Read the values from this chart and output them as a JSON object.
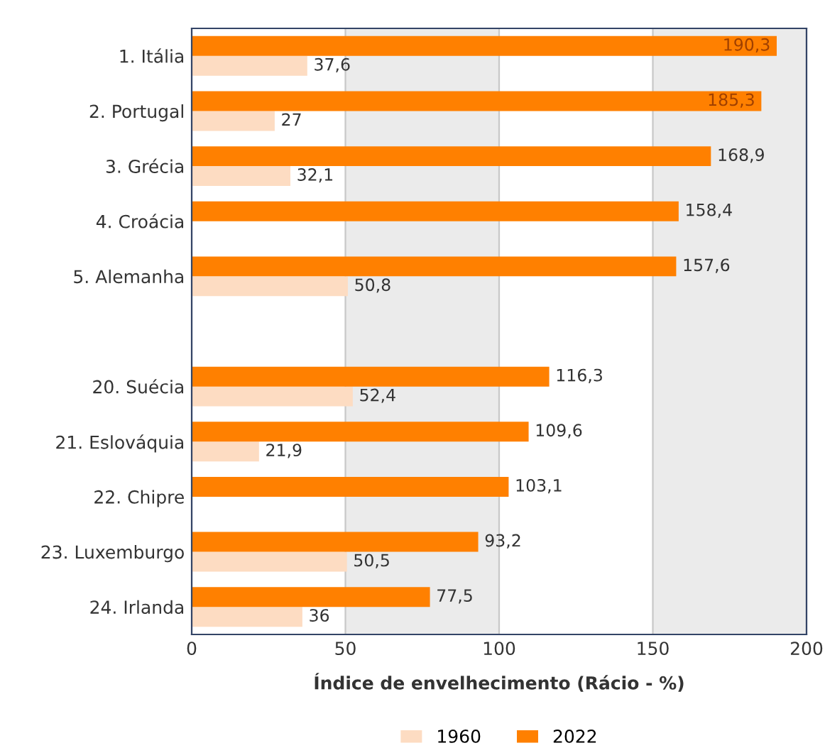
{
  "chart_data": {
    "type": "bar",
    "orientation": "horizontal",
    "xlabel": "Índice de envelhecimento (Rácio - %)",
    "categories": [
      "1. Itália",
      "2. Portugal",
      "3. Grécia",
      "4. Croácia",
      "5. Alemanha",
      null,
      "20. Suécia",
      "21. Eslováquia",
      "22. Chipre",
      "23. Luxemburgo",
      "24. Irlanda"
    ],
    "series": [
      {
        "name": "1960",
        "color": "#fddcc2",
        "values": [
          37.6,
          27,
          32.1,
          null,
          50.8,
          null,
          52.4,
          21.9,
          null,
          50.5,
          36
        ],
        "value_labels": [
          "37,6",
          "27",
          "32,1",
          null,
          "50,8",
          null,
          "52,4",
          "21,9",
          null,
          "50,5",
          "36"
        ]
      },
      {
        "name": "2022",
        "color": "#ff8000",
        "values": [
          190.3,
          185.3,
          168.9,
          158.4,
          157.6,
          null,
          116.3,
          109.6,
          103.1,
          93.2,
          77.5
        ],
        "value_labels": [
          "190,3",
          "185,3",
          "168,9",
          "158,4",
          "157,6",
          null,
          "116,3",
          "109,6",
          "103,1",
          "93,2",
          "77,5"
        ]
      }
    ],
    "xlim": [
      0,
      200
    ],
    "xticks": [
      0,
      50,
      100,
      150,
      200
    ],
    "bands": [
      {
        "axis": "x",
        "from": 50,
        "to": 100,
        "color": "#ebebeb"
      },
      {
        "axis": "x",
        "from": 150,
        "to": 200,
        "color": "#ebebeb"
      }
    ],
    "grid": "x",
    "legend": "bottom"
  }
}
